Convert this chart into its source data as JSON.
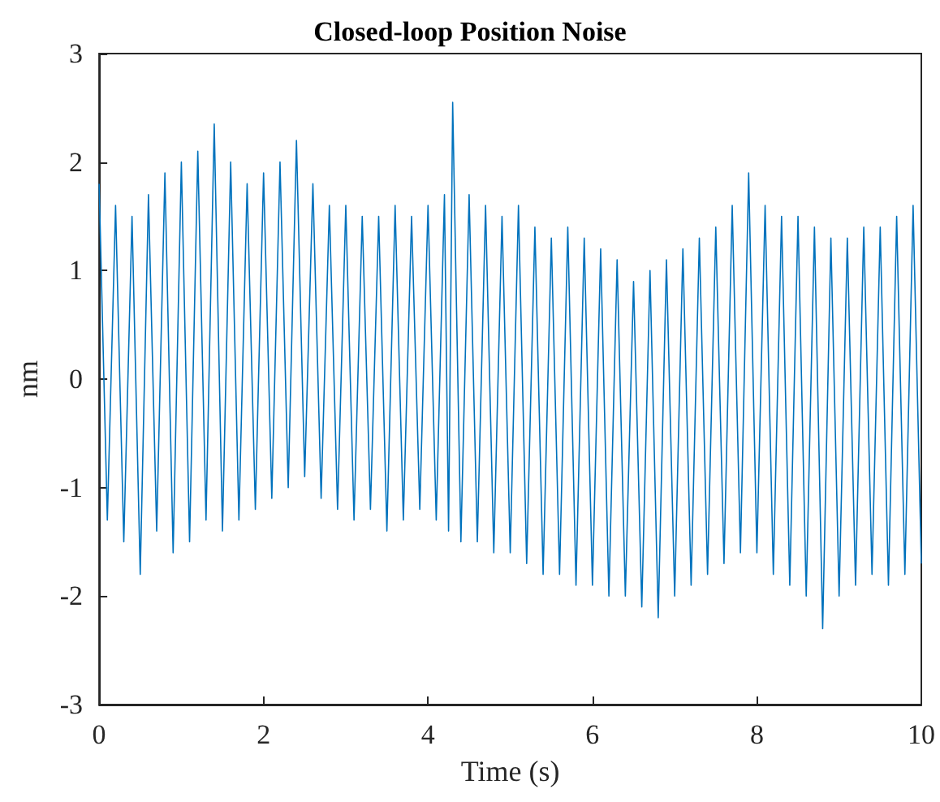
{
  "chart_data": {
    "type": "line",
    "title": "Closed-loop Position Noise",
    "xlabel": "Time (s)",
    "ylabel": "nm",
    "xlim": [
      0,
      10
    ],
    "xticks": [
      0,
      2,
      4,
      6,
      8,
      10
    ],
    "ylim": [
      -3,
      3
    ],
    "yticks": [
      -3,
      -2,
      -1,
      0,
      1,
      2,
      3
    ],
    "grid": false,
    "marker": "none",
    "line_style": "solid",
    "x": [
      0,
      0.1,
      0.2,
      0.3,
      0.4,
      0.5,
      0.6,
      0.7,
      0.8,
      0.9,
      1.0,
      1.1,
      1.2,
      1.3,
      1.4,
      1.5,
      1.6,
      1.7,
      1.8,
      1.9,
      2.0,
      2.1,
      2.2,
      2.3,
      2.4,
      2.5,
      2.6,
      2.7,
      2.8,
      2.9,
      3.0,
      3.1,
      3.2,
      3.3,
      3.4,
      3.5,
      3.6,
      3.7,
      3.8,
      3.9,
      4.0,
      4.1,
      4.2,
      4.25,
      4.3,
      4.4,
      4.5,
      4.6,
      4.7,
      4.8,
      4.9,
      5.0,
      5.1,
      5.2,
      5.3,
      5.4,
      5.5,
      5.6,
      5.7,
      5.8,
      5.9,
      6.0,
      6.1,
      6.2,
      6.3,
      6.4,
      6.5,
      6.6,
      6.7,
      6.8,
      6.9,
      7.0,
      7.1,
      7.2,
      7.3,
      7.4,
      7.5,
      7.6,
      7.7,
      7.8,
      7.9,
      8.0,
      8.1,
      8.2,
      8.3,
      8.4,
      8.5,
      8.6,
      8.7,
      8.8,
      8.9,
      9.0,
      9.1,
      9.2,
      9.3,
      9.4,
      9.5,
      9.6,
      9.7,
      9.8,
      9.9,
      10.0
    ],
    "series": [
      {
        "color": "#0072bd",
        "values": [
          1.8,
          -1.3,
          1.6,
          -1.5,
          1.5,
          -1.8,
          1.7,
          -1.4,
          1.9,
          -1.6,
          2.0,
          -1.5,
          2.1,
          -1.3,
          2.35,
          -1.4,
          2.0,
          -1.3,
          1.8,
          -1.2,
          1.9,
          -1.1,
          2.0,
          -1.0,
          2.2,
          -0.9,
          1.8,
          -1.1,
          1.6,
          -1.2,
          1.6,
          -1.3,
          1.5,
          -1.2,
          1.5,
          -1.4,
          1.6,
          -1.3,
          1.5,
          -1.2,
          1.6,
          -1.3,
          1.7,
          -1.4,
          2.55,
          -1.5,
          1.7,
          -1.5,
          1.6,
          -1.6,
          1.5,
          -1.6,
          1.6,
          -1.7,
          1.4,
          -1.8,
          1.3,
          -1.8,
          1.4,
          -1.9,
          1.3,
          -1.9,
          1.2,
          -2.0,
          1.1,
          -2.0,
          0.9,
          -2.1,
          1.0,
          -2.2,
          1.1,
          -2.0,
          1.2,
          -1.9,
          1.3,
          -1.8,
          1.4,
          -1.7,
          1.6,
          -1.6,
          1.9,
          -1.6,
          1.6,
          -1.8,
          1.5,
          -1.9,
          1.5,
          -2.0,
          1.4,
          -2.3,
          1.3,
          -2.0,
          1.3,
          -1.9,
          1.4,
          -1.8,
          1.4,
          -1.9,
          1.5,
          -1.8,
          1.6,
          -1.7
        ]
      }
    ]
  }
}
